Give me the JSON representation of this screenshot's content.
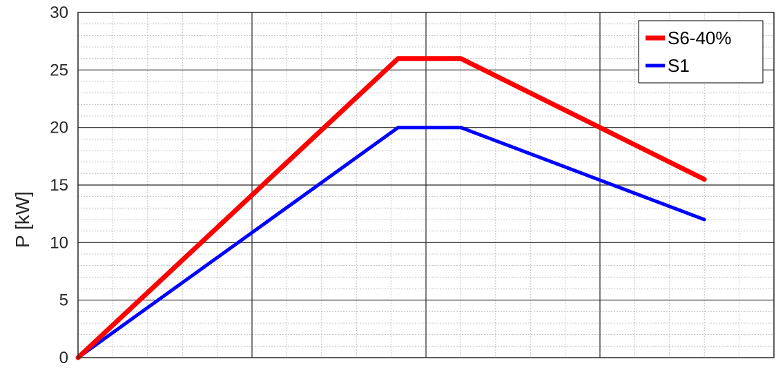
{
  "chart_data": {
    "type": "line",
    "title": "",
    "xlabel": "",
    "ylabel": "P [kW]",
    "xlim": [
      0,
      4
    ],
    "ylim": [
      0,
      30
    ],
    "yticks": [
      0,
      5,
      10,
      15,
      20,
      25,
      30
    ],
    "xticks": [
      0,
      1,
      2,
      3,
      4
    ],
    "grid": true,
    "minor_grid": true,
    "legend_position": "top-right",
    "series": [
      {
        "name": "S6-40%",
        "color": "#ff0000",
        "x": [
          0,
          1.84,
          2.2,
          3.6
        ],
        "y": [
          0,
          26,
          26,
          15.5
        ]
      },
      {
        "name": "S1",
        "color": "#0000ff",
        "x": [
          0,
          1.84,
          2.2,
          3.6
        ],
        "y": [
          0,
          20,
          20,
          12
        ]
      }
    ]
  }
}
